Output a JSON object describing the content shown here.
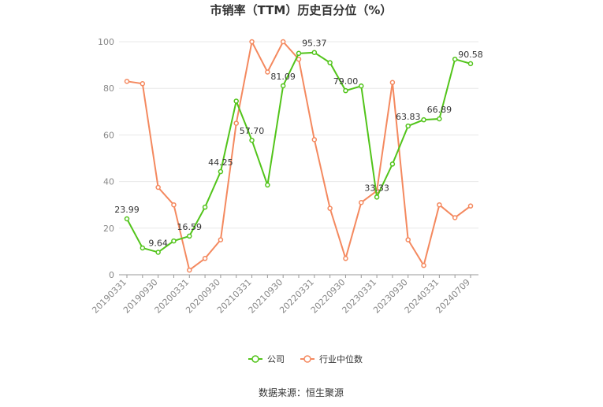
{
  "chart_data": {
    "type": "line",
    "title": "市销率（TTM）历史百分位（%）",
    "categories": [
      "20190331",
      null,
      "20190930",
      null,
      "20200331",
      null,
      "20200930",
      null,
      "20210331",
      null,
      "20210930",
      null,
      "20220331",
      null,
      "20220930",
      null,
      "20230331",
      null,
      "20230930",
      null,
      "20240331",
      null,
      "20240709"
    ],
    "series": [
      {
        "name": "公司",
        "color": "#52c41a",
        "values": [
          23.99,
          11.5,
          9.64,
          14.5,
          16.59,
          29,
          44.25,
          74.5,
          57.7,
          38.5,
          81.09,
          95,
          95.37,
          91,
          79,
          81,
          33.33,
          47.5,
          63.83,
          66.5,
          66.89,
          92.5,
          90.58
        ],
        "value_labels": [
          "23.99",
          null,
          "9.64",
          null,
          "16.59",
          null,
          "44.25",
          null,
          "57.70",
          null,
          "81.09",
          null,
          "95.37",
          null,
          "79.00",
          null,
          "33.33",
          null,
          "63.83",
          null,
          "66.89",
          null,
          "90.58"
        ]
      },
      {
        "name": "行业中位数",
        "color": "#f4895f",
        "values": [
          83,
          82,
          37.5,
          30,
          2,
          7,
          15,
          65,
          100,
          87,
          100,
          92.5,
          58,
          28.5,
          7,
          31,
          36,
          82.5,
          15,
          4,
          30,
          24.5,
          29.5
        ]
      }
    ],
    "ylim": [
      0,
      100
    ],
    "yticks": [
      0,
      20,
      40,
      60,
      80,
      100
    ],
    "grid": true,
    "source": "数据来源：恒生聚源"
  }
}
